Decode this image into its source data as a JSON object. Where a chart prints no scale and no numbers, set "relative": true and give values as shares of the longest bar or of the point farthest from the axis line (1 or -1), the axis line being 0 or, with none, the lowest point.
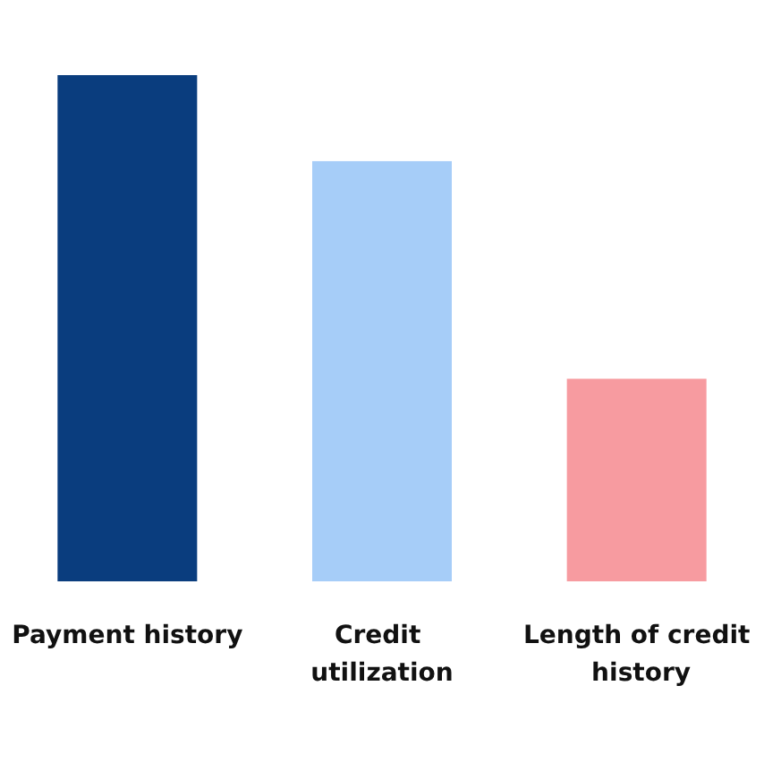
{
  "chart_data": {
    "type": "bar",
    "relative": true,
    "categories": [
      "Payment history",
      "Credit utilization",
      "Length of credit history"
    ],
    "values": [
      1,
      0.83,
      0.4
    ],
    "colors": [
      "#0a3d7e",
      "#a6cdf8",
      "#f79ba0"
    ]
  }
}
